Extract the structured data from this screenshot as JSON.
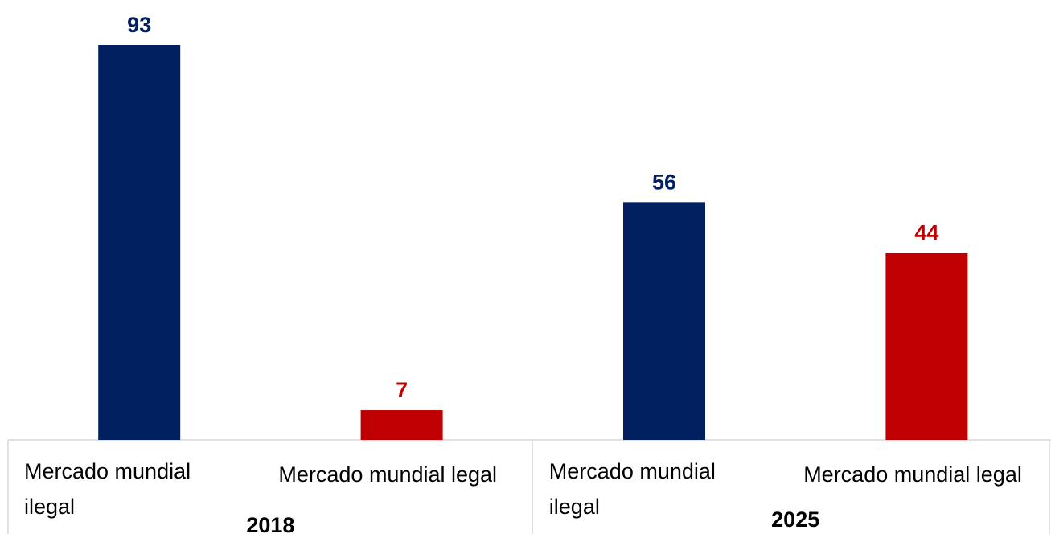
{
  "chart_data": {
    "type": "bar",
    "categories": [
      "Mercado mundial ilegal",
      "Mercado mundial legal",
      "Mercado mundial ilegal",
      "Mercado mundial legal"
    ],
    "groups": [
      "2018",
      "2025"
    ],
    "values": [
      93,
      7,
      56,
      44
    ],
    "colors": [
      "#002060",
      "#c00000",
      "#002060",
      "#c00000"
    ]
  }
}
